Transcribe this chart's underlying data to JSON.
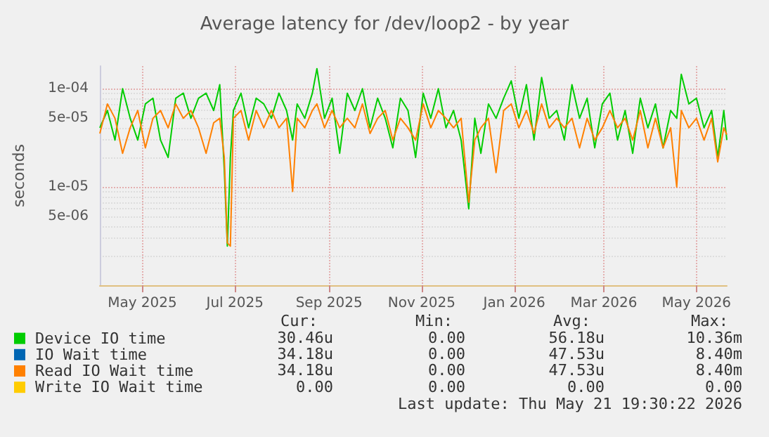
{
  "chart_data": {
    "type": "line",
    "title": "Average latency for /dev/loop2 - by year",
    "ylabel": "seconds",
    "log": "y",
    "grid": true,
    "legend": "bottom left",
    "marker": "none",
    "line_style": "solid",
    "ylim": [
      1e-06,
      0.00017
    ],
    "yticks": [
      {
        "value": 5e-06,
        "label": "5e-06"
      },
      {
        "value": 1e-05,
        "label": "1e-05"
      },
      {
        "value": 5e-05,
        "label": "5e-05"
      },
      {
        "value": 0.0001,
        "label": "1e-04"
      }
    ],
    "xlim": [
      "2025-04-03",
      "2026-05-21"
    ],
    "xticks": [
      {
        "value": "2025-05-01",
        "label": "May 2025"
      },
      {
        "value": "2025-07-01",
        "label": "Jul 2025"
      },
      {
        "value": "2025-09-01",
        "label": "Sep 2025"
      },
      {
        "value": "2025-11-01",
        "label": "Nov 2025"
      },
      {
        "value": "2026-01-01",
        "label": "Jan 2026"
      },
      {
        "value": "2026-03-01",
        "label": "Mar 2026"
      },
      {
        "value": "2026-05-01",
        "label": "May 2026"
      }
    ],
    "x": [
      "2025-04-03",
      "2025-04-08",
      "2025-04-13",
      "2025-04-18",
      "2025-04-23",
      "2025-04-28",
      "2025-05-03",
      "2025-05-08",
      "2025-05-13",
      "2025-05-18",
      "2025-05-23",
      "2025-05-28",
      "2025-06-02",
      "2025-06-07",
      "2025-06-12",
      "2025-06-17",
      "2025-06-21",
      "2025-06-24",
      "2025-06-26",
      "2025-06-28",
      "2025-06-30",
      "2025-07-05",
      "2025-07-10",
      "2025-07-15",
      "2025-07-20",
      "2025-07-25",
      "2025-07-30",
      "2025-08-04",
      "2025-08-08",
      "2025-08-11",
      "2025-08-16",
      "2025-08-21",
      "2025-08-24",
      "2025-08-29",
      "2025-09-03",
      "2025-09-08",
      "2025-09-13",
      "2025-09-18",
      "2025-09-23",
      "2025-09-28",
      "2025-10-03",
      "2025-10-08",
      "2025-10-13",
      "2025-10-18",
      "2025-10-23",
      "2025-10-28",
      "2025-11-02",
      "2025-11-07",
      "2025-11-12",
      "2025-11-17",
      "2025-11-22",
      "2025-11-27",
      "2025-12-02",
      "2025-12-06",
      "2025-12-10",
      "2025-12-15",
      "2025-12-20",
      "2025-12-25",
      "2025-12-30",
      "2026-01-04",
      "2026-01-09",
      "2026-01-14",
      "2026-01-19",
      "2026-01-24",
      "2026-01-29",
      "2026-02-03",
      "2026-02-08",
      "2026-02-13",
      "2026-02-18",
      "2026-02-23",
      "2026-02-28",
      "2026-03-05",
      "2026-03-10",
      "2026-03-15",
      "2026-03-20",
      "2026-03-25",
      "2026-03-30",
      "2026-04-04",
      "2026-04-09",
      "2026-04-14",
      "2026-04-18",
      "2026-04-21",
      "2026-04-26",
      "2026-05-01",
      "2026-05-06",
      "2026-05-11",
      "2026-05-15",
      "2026-05-19",
      "2026-05-21"
    ],
    "series": [
      {
        "name": "Device IO time",
        "color": "#00cc00",
        "values": [
          4e-05,
          6e-05,
          3e-05,
          0.0001,
          5e-05,
          3e-05,
          7e-05,
          8e-05,
          3e-05,
          2e-05,
          8e-05,
          9e-05,
          5e-05,
          8e-05,
          9e-05,
          6e-05,
          0.00011,
          1.5e-05,
          2.5e-06,
          2e-05,
          6e-05,
          9e-05,
          4e-05,
          8e-05,
          7e-05,
          5e-05,
          9e-05,
          6e-05,
          3e-05,
          7e-05,
          5e-05,
          9e-05,
          0.00016,
          5e-05,
          8e-05,
          2.2e-05,
          9e-05,
          6e-05,
          0.0001,
          4e-05,
          8e-05,
          5e-05,
          2.5e-05,
          8e-05,
          6e-05,
          2e-05,
          9e-05,
          5e-05,
          0.0001,
          4e-05,
          6e-05,
          3e-05,
          6e-06,
          5e-05,
          2.2e-05,
          7e-05,
          5e-05,
          8e-05,
          0.00012,
          5e-05,
          0.00011,
          3e-05,
          0.00013,
          5e-05,
          6e-05,
          3e-05,
          0.00011,
          5e-05,
          8e-05,
          2.5e-05,
          7e-05,
          9e-05,
          3e-05,
          6e-05,
          2.2e-05,
          8e-05,
          4e-05,
          7e-05,
          2.5e-05,
          6e-05,
          5e-05,
          0.00014,
          7e-05,
          8e-05,
          4e-05,
          6e-05,
          2e-05,
          6e-05,
          3e-05
        ]
      },
      {
        "name": "IO Wait time",
        "color": "#0066b3",
        "values": [
          null,
          null,
          null,
          null,
          null,
          null,
          null,
          null,
          null,
          null,
          null,
          null,
          null,
          null,
          null,
          null,
          null,
          null,
          null,
          null,
          null,
          null,
          null,
          null,
          null,
          null,
          null,
          null,
          null,
          null,
          null,
          null,
          null,
          null,
          null,
          null,
          null,
          null,
          null,
          null,
          null,
          null,
          null,
          null,
          null,
          null,
          null,
          null,
          null,
          null,
          null,
          null,
          null,
          null,
          null,
          null,
          null,
          null,
          null,
          null,
          null,
          null,
          null,
          null,
          null,
          null,
          null,
          null,
          null,
          null,
          null,
          null,
          null,
          null,
          null,
          null,
          null,
          null,
          null,
          null,
          null,
          null,
          null,
          null,
          null,
          null,
          null,
          null,
          null
        ]
      },
      {
        "name": "Read IO Wait time",
        "color": "#ff8000",
        "values": [
          3.5e-05,
          7e-05,
          5e-05,
          2.2e-05,
          4e-05,
          6e-05,
          2.5e-05,
          5e-05,
          6e-05,
          4e-05,
          7e-05,
          5e-05,
          6e-05,
          4e-05,
          2.2e-05,
          4.5e-05,
          5e-05,
          2e-05,
          2.7e-06,
          2.5e-06,
          5e-05,
          6e-05,
          3e-05,
          6e-05,
          4e-05,
          6e-05,
          4e-05,
          5e-05,
          9e-06,
          5e-05,
          4e-05,
          6e-05,
          7e-05,
          4e-05,
          6e-05,
          4e-05,
          5e-05,
          4e-05,
          7e-05,
          3.5e-05,
          5e-05,
          6e-05,
          3e-05,
          5e-05,
          4e-05,
          3e-05,
          7e-05,
          4e-05,
          6e-05,
          5e-05,
          4e-05,
          5e-05,
          7e-06,
          3e-05,
          4e-05,
          5e-05,
          1.4e-05,
          6e-05,
          7e-05,
          4e-05,
          6e-05,
          3.5e-05,
          7e-05,
          4e-05,
          5e-05,
          4e-05,
          5e-05,
          2.5e-05,
          5e-05,
          3e-05,
          4e-05,
          6e-05,
          4e-05,
          5e-05,
          3e-05,
          6e-05,
          2.5e-05,
          5e-05,
          2.5e-05,
          4e-05,
          1e-05,
          6e-05,
          4e-05,
          5e-05,
          3e-05,
          5e-05,
          1.8e-05,
          4e-05,
          3.4e-05
        ]
      },
      {
        "name": "Write IO Wait time",
        "color": "#ffcc00",
        "values": [
          null,
          null,
          null,
          null,
          null,
          null,
          null,
          null,
          null,
          null,
          null,
          null,
          null,
          null,
          null,
          null,
          null,
          null,
          null,
          null,
          null,
          null,
          null,
          null,
          null,
          null,
          null,
          null,
          null,
          null,
          null,
          null,
          null,
          null,
          null,
          null,
          null,
          null,
          null,
          null,
          null,
          null,
          null,
          null,
          null,
          null,
          null,
          null,
          null,
          null,
          null,
          null,
          null,
          null,
          null,
          null,
          null,
          null,
          null,
          null,
          null,
          null,
          null,
          null,
          null,
          null,
          null,
          null,
          null,
          null,
          null,
          null,
          null,
          null,
          null,
          null,
          null,
          null,
          null,
          null,
          null,
          null,
          null,
          null,
          null,
          null,
          null,
          null,
          null
        ]
      }
    ],
    "annotations": [
      "Cur:",
      "Min:",
      "Avg:",
      "Max:",
      "30.46u",
      "0.00",
      "56.18u",
      "10.36m",
      "34.18u",
      "0.00",
      "47.53u",
      "8.40m",
      "34.18u",
      "0.00",
      "47.53u",
      "8.40m",
      "0.00",
      "0.00",
      "0.00",
      "0.00",
      "Last update: Thu May 21 19:30:22 2026"
    ]
  }
}
